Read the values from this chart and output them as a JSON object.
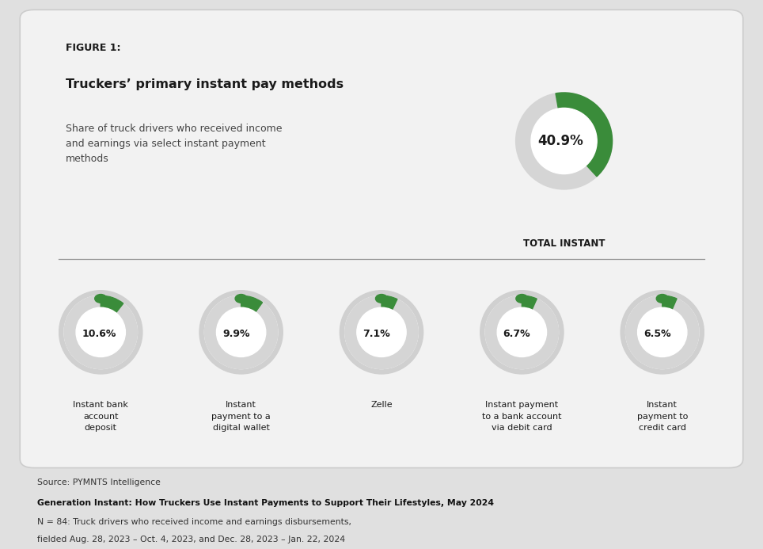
{
  "figure_label": "FIGURE 1:",
  "title": "Truckers’ primary instant pay methods",
  "subtitle": "Share of truck drivers who received income\nand earnings via select instant payment\nmethods",
  "total_value": "40.9%",
  "total_label": "TOTAL INSTANT",
  "total_pct": 40.9,
  "small_charts": [
    {
      "value": 10.6,
      "label": "Instant bank\naccount\ndeposit"
    },
    {
      "value": 9.9,
      "label": "Instant\npayment to a\ndigital wallet"
    },
    {
      "value": 7.1,
      "label": "Zelle"
    },
    {
      "value": 6.7,
      "label": "Instant payment\nto a bank account\nvia debit card"
    },
    {
      "value": 6.5,
      "label": "Instant\npayment to\ncredit card"
    }
  ],
  "source_line1": "Source: PYMNTS Intelligence",
  "source_line2": "Generation Instant: How Truckers Use Instant Payments to Support Their Lifestyles, May 2024",
  "source_line3": "N = 84: Truck drivers who received income and earnings disbursements,",
  "source_line4": "fielded Aug. 28, 2023 – Oct. 4, 2023, and Dec. 28, 2023 – Jan. 22, 2024",
  "outer_bg": "#e0e0e0",
  "card_bg": "#f2f2f2",
  "card_edge": "#cccccc",
  "green_color": "#3a8c3a",
  "gray_track": "#d5d5d5",
  "shadow_color": "#d8d8d8",
  "white": "#ffffff",
  "dark_text": "#1a1a1a",
  "subtitle_color": "#444444"
}
